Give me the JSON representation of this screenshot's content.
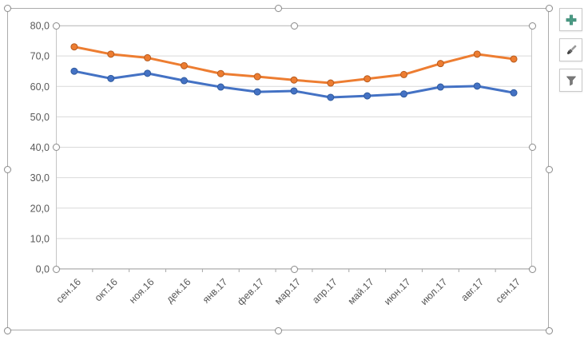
{
  "chart_data": {
    "type": "line",
    "title": "",
    "xlabel": "",
    "ylabel": "",
    "categories": [
      "сен.16",
      "окт.16",
      "ноя.16",
      "дек.16",
      "янв.17",
      "фев.17",
      "мар.17",
      "апр.17",
      "май.17",
      "июн.17",
      "июл.17",
      "авг.17",
      "сен.17"
    ],
    "series": [
      {
        "name": "orange-series",
        "color": "#ED7D31",
        "marker_edge": "#B65A1E",
        "values": [
          73.0,
          70.6,
          69.4,
          66.8,
          64.2,
          63.2,
          62.1,
          61.1,
          62.5,
          63.9,
          67.5,
          70.6,
          69.0
        ]
      },
      {
        "name": "blue-series",
        "color": "#4472C4",
        "marker_edge": "#2F5A9E",
        "values": [
          65.0,
          62.6,
          64.3,
          61.9,
          59.8,
          58.2,
          58.5,
          56.4,
          56.9,
          57.5,
          59.8,
          60.1,
          57.9
        ]
      }
    ],
    "ylim": [
      0,
      80
    ],
    "ytick_step": 10,
    "ytick_labels_top_to_bottom": [
      "80,0",
      "70,0",
      "60,0",
      "50,0",
      "40,0",
      "30,0",
      "20,0",
      "10,0",
      "0,0"
    ],
    "grid": true,
    "legend": "none",
    "axis_label_color": "#595959",
    "gridline_color": "#d9d9d9",
    "axis_line_color": "#a6a6a6",
    "x_labels_rotation_deg": -45
  },
  "toolbar": {
    "buttons": [
      {
        "name": "chart-elements",
        "icon": "plus-icon",
        "icon_color": "#4a9b84"
      },
      {
        "name": "chart-styles",
        "icon": "paintbrush-icon",
        "icon_color": "#6e6e6e"
      },
      {
        "name": "chart-filters",
        "icon": "funnel-icon",
        "icon_color": "#7a7a7a"
      }
    ]
  },
  "selection": {
    "state": "chart-selected",
    "handle_fill": "#ffffff",
    "handle_border": "#8e8e8e"
  }
}
